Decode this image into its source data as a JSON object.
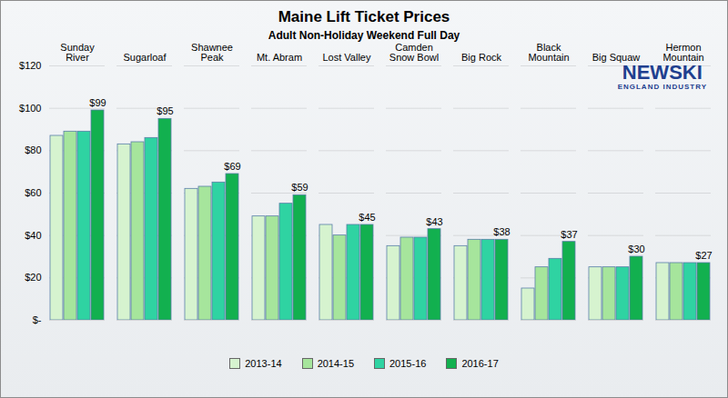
{
  "chart_data": {
    "type": "bar",
    "title": "Maine Lift Ticket Prices",
    "subtitle": "Adult Non-Holiday Weekend Full Day",
    "annotations": [
      "NEWSKI",
      "ENGLAND INDUSTRY"
    ],
    "categories": [
      "Sunday River",
      "Sugarloaf",
      "Shawnee Peak",
      "Mt. Abram",
      "Lost Valley",
      "Camden Snow Bowl",
      "Big Rock",
      "Black Mountain",
      "Big Squaw",
      "Hermon Mountain"
    ],
    "series": [
      {
        "name": "2013-14",
        "color": "#d6f3cf",
        "values": [
          87,
          83,
          62,
          49,
          45,
          35,
          35,
          15,
          25,
          27
        ]
      },
      {
        "name": "2014-15",
        "color": "#a6e59c",
        "values": [
          89,
          84,
          63,
          49,
          40,
          39,
          38,
          25,
          25,
          27
        ]
      },
      {
        "name": "2015-16",
        "color": "#2fd3a2",
        "values": [
          89,
          86,
          65,
          55,
          45,
          39,
          38,
          29,
          25,
          27
        ]
      },
      {
        "name": "2016-17",
        "color": "#12b04f",
        "values": [
          99,
          95,
          69,
          59,
          45,
          43,
          38,
          37,
          30,
          27
        ],
        "value_labels": [
          "$99",
          "$95",
          "$69",
          "$59",
          "$45",
          "$43",
          "$38",
          "$37",
          "$30",
          "$27"
        ]
      }
    ],
    "ylim": [
      0,
      120
    ],
    "yticks": [
      {
        "value": 0,
        "label": "$-"
      },
      {
        "value": 20,
        "label": "$20"
      },
      {
        "value": 40,
        "label": "$40"
      },
      {
        "value": 60,
        "label": "$60"
      },
      {
        "value": 80,
        "label": "$80"
      },
      {
        "value": 100,
        "label": "$100"
      },
      {
        "value": 120,
        "label": "$120"
      }
    ],
    "grid": true,
    "legend": "bottom"
  }
}
